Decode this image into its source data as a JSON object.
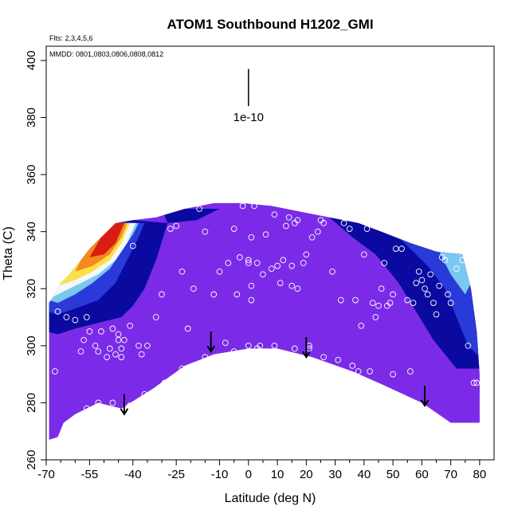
{
  "chart_data": {
    "type": "heatmap",
    "title": "ATOM1 Southbound H1202_GMI",
    "subtitle_flights": "Flts: 2,3,4,5,6",
    "annotation_dates": "MMDD: 0801,0803,0806,0808,0812",
    "xlabel": "Latitude (deg N)",
    "ylabel": "Theta (C)",
    "xlim": [
      -70,
      85
    ],
    "ylim": [
      260,
      405
    ],
    "x_ticks": [
      -70,
      -55,
      -40,
      -25,
      -10,
      0,
      10,
      20,
      30,
      40,
      50,
      60,
      70,
      80
    ],
    "x_tick_labels": [
      "-70",
      "-55",
      "-40",
      "-25",
      "-10",
      "0",
      "10",
      "20",
      "30",
      "40",
      "50",
      "60",
      "70",
      "80"
    ],
    "x_minor_ticks": [
      -65,
      -60,
      -50,
      -45,
      -35,
      -30,
      -20,
      -15,
      -5,
      5,
      15,
      25,
      35,
      45,
      55,
      65,
      75
    ],
    "y_ticks": [
      260,
      280,
      300,
      320,
      340,
      360,
      380,
      400
    ],
    "y_tick_labels": [
      "260",
      "280",
      "300",
      "320",
      "340",
      "360",
      "380",
      "400"
    ],
    "scale_bar": {
      "label": "1e-10",
      "x": 0,
      "y_top": 397,
      "y_bottom": 384
    },
    "colors": {
      "background": "#7b2be8",
      "dark_blue": "#0a0aa0",
      "medium_blue": "#2a3ad8",
      "light_blue": "#79c8f0",
      "white": "#f4f8fc",
      "yellow": "#fce04a",
      "orange": "#f58a1e",
      "red": "#d81e14"
    },
    "domain_upper": [
      [
        -69,
        315
      ],
      [
        -67,
        318
      ],
      [
        -65,
        322
      ],
      [
        -62,
        325
      ],
      [
        -58,
        330
      ],
      [
        -55,
        334
      ],
      [
        -51,
        338
      ],
      [
        -46,
        343
      ],
      [
        -40,
        344
      ],
      [
        -32,
        345
      ],
      [
        -22,
        348
      ],
      [
        -12,
        350
      ],
      [
        -2,
        350
      ],
      [
        8,
        349
      ],
      [
        18,
        347
      ],
      [
        28,
        345
      ],
      [
        38,
        343
      ],
      [
        46,
        340
      ],
      [
        56,
        336
      ],
      [
        65,
        333
      ],
      [
        74,
        332
      ],
      [
        77,
        320
      ],
      [
        79,
        305
      ],
      [
        80,
        290
      ]
    ],
    "domain_lower": [
      [
        80,
        273
      ],
      [
        70,
        273
      ],
      [
        60,
        280
      ],
      [
        45,
        287
      ],
      [
        36,
        291
      ],
      [
        22,
        296
      ],
      [
        10,
        299
      ],
      [
        0,
        299
      ],
      [
        -12,
        297
      ],
      [
        -22,
        293
      ],
      [
        -33,
        285
      ],
      [
        -44,
        278
      ],
      [
        -52,
        280
      ],
      [
        -60,
        276
      ],
      [
        -64,
        273
      ],
      [
        -66,
        268
      ],
      [
        -69,
        267
      ]
    ],
    "blue_regions": [
      {
        "level": "dark",
        "polygon": [
          [
            -70,
            305
          ],
          [
            -66,
            304
          ],
          [
            -60,
            306
          ],
          [
            -52,
            308
          ],
          [
            -44,
            310
          ],
          [
            -40,
            314
          ],
          [
            -36,
            320
          ],
          [
            -32,
            330
          ],
          [
            -28,
            343
          ],
          [
            -40,
            344
          ],
          [
            -46,
            343
          ],
          [
            -51,
            338
          ],
          [
            -55,
            334
          ],
          [
            -58,
            330
          ],
          [
            -62,
            325
          ],
          [
            -65,
            322
          ],
          [
            -67,
            318
          ],
          [
            -69,
            315
          ],
          [
            -70,
            311
          ]
        ]
      },
      {
        "level": "dark",
        "polygon": [
          [
            -28,
            343
          ],
          [
            -18,
            344
          ],
          [
            -10,
            348
          ],
          [
            -30,
            348
          ]
        ]
      },
      {
        "level": "dark",
        "polygon": [
          [
            28,
            345
          ],
          [
            40,
            343
          ],
          [
            50,
            340
          ],
          [
            60,
            336
          ],
          [
            70,
            333
          ],
          [
            74,
            332
          ],
          [
            77,
            320
          ],
          [
            79,
            305
          ],
          [
            80,
            292
          ],
          [
            72,
            292
          ],
          [
            64,
            302
          ],
          [
            58,
            312
          ],
          [
            52,
            322
          ],
          [
            44,
            332
          ],
          [
            36,
            338
          ]
        ]
      },
      {
        "level": "medium",
        "polygon": [
          [
            50,
            340
          ],
          [
            60,
            336
          ],
          [
            70,
            333
          ],
          [
            74,
            332
          ],
          [
            77,
            320
          ],
          [
            79,
            305
          ],
          [
            80,
            296
          ],
          [
            76,
            300
          ],
          [
            72,
            310
          ],
          [
            68,
            320
          ],
          [
            62,
            328
          ],
          [
            56,
            334
          ]
        ]
      },
      {
        "level": "light",
        "polygon": [
          [
            66,
            333
          ],
          [
            74,
            332
          ],
          [
            77,
            322
          ],
          [
            75,
            318
          ],
          [
            70,
            325
          ]
        ]
      },
      {
        "level": "medium",
        "polygon": [
          [
            -70,
            312
          ],
          [
            -66,
            311
          ],
          [
            -60,
            313
          ],
          [
            -52,
            316
          ],
          [
            -46,
            322
          ],
          [
            -42,
            330
          ],
          [
            -38,
            338
          ],
          [
            -36,
            343
          ],
          [
            -46,
            343
          ],
          [
            -51,
            338
          ],
          [
            -55,
            334
          ],
          [
            -58,
            330
          ],
          [
            -62,
            325
          ],
          [
            -65,
            322
          ],
          [
            -67,
            318
          ],
          [
            -69,
            315
          ]
        ]
      },
      {
        "level": "light",
        "polygon": [
          [
            -69,
            316
          ],
          [
            -66,
            315
          ],
          [
            -60,
            318
          ],
          [
            -54,
            322
          ],
          [
            -48,
            327
          ],
          [
            -44,
            333
          ],
          [
            -40,
            339
          ],
          [
            -38,
            343
          ],
          [
            -46,
            343
          ],
          [
            -51,
            338
          ],
          [
            -55,
            334
          ],
          [
            -58,
            330
          ],
          [
            -62,
            325
          ],
          [
            -65,
            322
          ],
          [
            -67,
            318
          ]
        ]
      },
      {
        "level": "white",
        "polygon": [
          [
            -68,
            317
          ],
          [
            -64,
            319
          ],
          [
            -58,
            322
          ],
          [
            -52,
            325
          ],
          [
            -46,
            330
          ],
          [
            -42,
            336
          ],
          [
            -39,
            343
          ],
          [
            -46,
            343
          ],
          [
            -51,
            338
          ],
          [
            -55,
            334
          ],
          [
            -58,
            330
          ],
          [
            -62,
            325
          ],
          [
            -65,
            322
          ]
        ]
      },
      {
        "level": "yellow",
        "polygon": [
          [
            -66,
            321
          ],
          [
            -60,
            323
          ],
          [
            -54,
            326
          ],
          [
            -48,
            330
          ],
          [
            -44,
            336
          ],
          [
            -41,
            343
          ],
          [
            -46,
            343
          ],
          [
            -51,
            338
          ],
          [
            -55,
            334
          ],
          [
            -58,
            330
          ],
          [
            -62,
            325
          ]
        ]
      },
      {
        "level": "orange",
        "polygon": [
          [
            -60,
            326
          ],
          [
            -54,
            328
          ],
          [
            -48,
            332
          ],
          [
            -44,
            338
          ],
          [
            -42,
            343
          ],
          [
            -46,
            343
          ],
          [
            -51,
            338
          ],
          [
            -55,
            334
          ],
          [
            -58,
            330
          ]
        ]
      },
      {
        "level": "red",
        "polygon": [
          [
            -55,
            331
          ],
          [
            -50,
            332
          ],
          [
            -46,
            336
          ],
          [
            -43,
            343
          ],
          [
            -46,
            343
          ],
          [
            -51,
            338
          ]
        ]
      }
    ],
    "measurement_points": [
      [
        -67,
        291
      ],
      [
        -66,
        312
      ],
      [
        -63,
        310
      ],
      [
        -60,
        309
      ],
      [
        -58,
        298
      ],
      [
        -57,
        302
      ],
      [
        -56,
        310
      ],
      [
        -55,
        305
      ],
      [
        -53,
        300
      ],
      [
        -52,
        298
      ],
      [
        -51,
        305
      ],
      [
        -49,
        296
      ],
      [
        -48,
        299
      ],
      [
        -47,
        306
      ],
      [
        -46,
        297
      ],
      [
        -45,
        302
      ],
      [
        -45,
        304
      ],
      [
        -44,
        296
      ],
      [
        -44,
        299
      ],
      [
        -43,
        302
      ],
      [
        -41,
        307
      ],
      [
        -40,
        335
      ],
      [
        -38,
        300
      ],
      [
        -37,
        297
      ],
      [
        -35,
        300
      ],
      [
        -32,
        310
      ],
      [
        -30,
        318
      ],
      [
        -27,
        341
      ],
      [
        -25,
        342
      ],
      [
        -23,
        326
      ],
      [
        -21,
        306
      ],
      [
        -19,
        320
      ],
      [
        -17,
        348
      ],
      [
        -15,
        340
      ],
      [
        -12,
        318
      ],
      [
        -10,
        326
      ],
      [
        -8,
        301
      ],
      [
        -7,
        329
      ],
      [
        -5,
        341
      ],
      [
        -4,
        318
      ],
      [
        -3,
        331
      ],
      [
        -2,
        349
      ],
      [
        -1,
        352
      ],
      [
        0,
        330
      ],
      [
        0,
        329
      ],
      [
        1,
        338
      ],
      [
        1,
        321
      ],
      [
        1,
        316
      ],
      [
        2,
        349
      ],
      [
        3,
        329
      ],
      [
        3,
        299
      ],
      [
        4,
        300
      ],
      [
        5,
        325
      ],
      [
        6,
        339
      ],
      [
        8,
        327
      ],
      [
        9,
        346
      ],
      [
        10,
        328
      ],
      [
        11,
        322
      ],
      [
        12,
        330
      ],
      [
        13,
        342
      ],
      [
        14,
        345
      ],
      [
        15,
        321
      ],
      [
        15,
        328
      ],
      [
        16,
        343
      ],
      [
        17,
        320
      ],
      [
        17,
        344
      ],
      [
        19,
        329
      ],
      [
        20,
        332
      ],
      [
        21,
        299
      ],
      [
        22,
        338
      ],
      [
        24,
        340
      ],
      [
        25,
        344
      ],
      [
        26,
        343
      ],
      [
        29,
        326
      ],
      [
        31,
        295
      ],
      [
        32,
        316
      ],
      [
        33,
        343
      ],
      [
        35,
        341
      ],
      [
        37,
        316
      ],
      [
        38,
        291
      ],
      [
        39,
        307
      ],
      [
        40,
        332
      ],
      [
        41,
        341
      ],
      [
        43,
        315
      ],
      [
        44,
        310
      ],
      [
        45,
        314
      ],
      [
        46,
        320
      ],
      [
        47,
        329
      ],
      [
        48,
        314
      ],
      [
        49,
        315
      ],
      [
        50,
        318
      ],
      [
        51,
        334
      ],
      [
        53,
        334
      ],
      [
        55,
        316
      ],
      [
        56,
        291
      ],
      [
        57,
        315
      ],
      [
        58,
        322
      ],
      [
        59,
        326
      ],
      [
        60,
        323
      ],
      [
        61,
        320
      ],
      [
        62,
        318
      ],
      [
        63,
        325
      ],
      [
        64,
        315
      ],
      [
        65,
        311
      ],
      [
        66,
        321
      ],
      [
        67,
        331
      ],
      [
        68,
        330
      ],
      [
        69,
        318
      ],
      [
        70,
        315
      ],
      [
        72,
        327
      ],
      [
        74,
        330
      ],
      [
        76,
        300
      ],
      [
        78,
        287
      ],
      [
        79,
        287
      ],
      [
        80,
        272
      ],
      [
        -36,
        283
      ],
      [
        -41,
        279
      ],
      [
        -47,
        280
      ],
      [
        -52,
        280
      ],
      [
        -56,
        278
      ],
      [
        -29,
        287
      ],
      [
        -23,
        292
      ],
      [
        -15,
        296
      ],
      [
        -5,
        298
      ],
      [
        0,
        300
      ],
      [
        9,
        300
      ],
      [
        16,
        299
      ],
      [
        21,
        300
      ],
      [
        26,
        296
      ],
      [
        36,
        293
      ],
      [
        42,
        291
      ],
      [
        50,
        290
      ]
    ],
    "arrows": [
      {
        "lat": -43,
        "theta_top": 283,
        "theta_bottom": 276
      },
      {
        "lat": -13,
        "theta_top": 305,
        "theta_bottom": 298
      },
      {
        "lat": 20,
        "theta_top": 303,
        "theta_bottom": 296
      },
      {
        "lat": 61,
        "theta_top": 286,
        "theta_bottom": 279
      }
    ]
  }
}
